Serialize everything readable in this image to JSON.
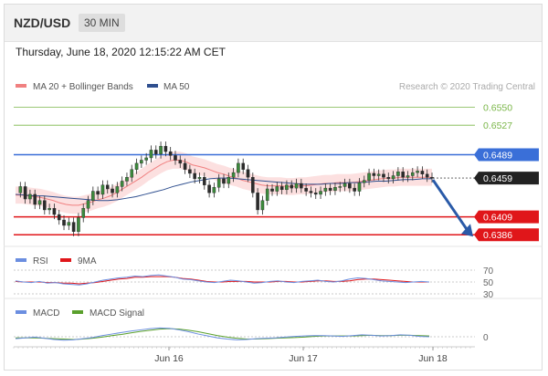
{
  "header": {
    "pair": "NZD/USD",
    "timeframe": "30 MIN"
  },
  "datetime": "Thursday, June 18, 2020 12:15:22 AM CET",
  "legend": {
    "bb": "MA 20 + Bollinger Bands",
    "ma50": "MA 50",
    "credit": "Research © 2020 Trading Central"
  },
  "rsi_legend": {
    "rsi": "RSI",
    "ma9": "9MA"
  },
  "macd_legend": {
    "macd": "MACD",
    "signal": "MACD Signal"
  },
  "colors": {
    "bb": "#f08080",
    "ma50": "#2f4f8f",
    "green": "#7ab648",
    "blue": "#3a6fd8",
    "red": "#e0161a",
    "black": "#222222",
    "arrow": "#2a5aa8",
    "macd": "#6b8ee0",
    "signal": "#5aa02c"
  },
  "chart_data": [
    {
      "type": "line",
      "title": "NZD/USD 30 MIN",
      "x_ticks": [
        "Jun 16",
        "Jun 17",
        "Jun 18"
      ],
      "ylim": [
        0.6378,
        0.6566
      ],
      "levels": [
        {
          "label": "0.6550",
          "value": 0.655,
          "color": "#7ab648",
          "style": "text"
        },
        {
          "label": "0.6527",
          "value": 0.6527,
          "color": "#7ab648",
          "style": "text"
        },
        {
          "label": "0.6489",
          "value": 0.6489,
          "color": "#3a6fd8",
          "style": "box"
        },
        {
          "label": "0.6459",
          "value": 0.6459,
          "color": "#222222",
          "style": "box",
          "dashed": true
        },
        {
          "label": "0.6409",
          "value": 0.6409,
          "color": "#e0161a",
          "style": "box"
        },
        {
          "label": "0.6386",
          "value": 0.6386,
          "color": "#e0161a",
          "style": "box"
        }
      ],
      "close": [
        0.644,
        0.6448,
        0.6432,
        0.6438,
        0.6425,
        0.643,
        0.6418,
        0.642,
        0.6412,
        0.6405,
        0.6398,
        0.6402,
        0.639,
        0.6408,
        0.642,
        0.643,
        0.6442,
        0.6438,
        0.645,
        0.6445,
        0.644,
        0.6448,
        0.6455,
        0.646,
        0.647,
        0.6478,
        0.6482,
        0.6485,
        0.6495,
        0.649,
        0.65,
        0.6493,
        0.6488,
        0.6482,
        0.6478,
        0.647,
        0.6465,
        0.6458,
        0.646,
        0.645,
        0.644,
        0.6447,
        0.6458,
        0.6452,
        0.646,
        0.6466,
        0.6478,
        0.647,
        0.646,
        0.644,
        0.6418,
        0.643,
        0.6445,
        0.6442,
        0.6448,
        0.6444,
        0.645,
        0.6446,
        0.6452,
        0.6446,
        0.6442,
        0.644,
        0.6438,
        0.6442,
        0.6446,
        0.6443,
        0.6447,
        0.6448,
        0.6452,
        0.6446,
        0.6442,
        0.6453,
        0.6456,
        0.6465,
        0.6462,
        0.6464,
        0.646,
        0.6458,
        0.6462,
        0.6467,
        0.646,
        0.6462,
        0.6466,
        0.6468,
        0.6464,
        0.646,
        0.6459
      ],
      "ma20": [
        0.6437,
        0.6437,
        0.6436,
        0.6435,
        0.6434,
        0.6432,
        0.643,
        0.6427,
        0.6425,
        0.6424,
        0.6424,
        0.6426,
        0.6428,
        0.6431,
        0.6433,
        0.6436,
        0.644,
        0.6445,
        0.645,
        0.6455,
        0.646,
        0.6466,
        0.6471,
        0.6476,
        0.648,
        0.6482,
        0.6482,
        0.648,
        0.6476,
        0.6474,
        0.6472,
        0.6469,
        0.6466,
        0.6464,
        0.6461,
        0.6459,
        0.6456,
        0.6454,
        0.6452,
        0.645,
        0.6449,
        0.6449,
        0.6449,
        0.6448,
        0.6448,
        0.6449,
        0.6449,
        0.645,
        0.6451,
        0.6452,
        0.6452,
        0.6453,
        0.6453,
        0.6453,
        0.6454,
        0.6455,
        0.6456,
        0.6457,
        0.6458,
        0.6459,
        0.6459,
        0.646,
        0.646,
        0.646,
        0.646,
        0.646,
        0.646
      ],
      "ma50": [
        0.6438,
        0.6437,
        0.6436,
        0.6436,
        0.6435,
        0.6434,
        0.6433,
        0.6432,
        0.6431,
        0.643,
        0.643,
        0.6431,
        0.6433,
        0.6435,
        0.6438,
        0.6441,
        0.6444,
        0.6448,
        0.6451,
        0.6454,
        0.6456,
        0.6458,
        0.6459,
        0.6459,
        0.6458,
        0.6457,
        0.6456,
        0.6455,
        0.6454,
        0.6453,
        0.6452,
        0.6451,
        0.6451,
        0.6451,
        0.6452,
        0.6452,
        0.6453,
        0.6453,
        0.6454,
        0.6455,
        0.6455,
        0.6456,
        0.6457,
        0.6457,
        0.6458,
        0.6458
      ],
      "arrow": {
        "from": 0.6459,
        "to": 0.6386
      }
    },
    {
      "type": "line",
      "title": "RSI",
      "ylim": [
        30,
        70
      ],
      "ticks": [
        "70",
        "50",
        "30"
      ],
      "rsi": [
        52,
        50,
        49,
        51,
        48,
        49,
        47,
        46,
        45,
        47,
        50,
        53,
        55,
        57,
        58,
        60,
        59,
        61,
        62,
        60,
        58,
        55,
        54,
        52,
        50,
        49,
        51,
        53,
        52,
        50,
        48,
        49,
        51,
        52,
        50,
        49,
        51,
        52,
        53,
        51,
        50,
        52,
        55,
        57,
        56,
        54,
        52,
        51,
        50,
        49,
        50,
        51,
        50
      ],
      "ma9": [
        51,
        50,
        50,
        50,
        49,
        49,
        48,
        48,
        47,
        48,
        49,
        51,
        53,
        55,
        56,
        58,
        58,
        59,
        59,
        59,
        58,
        56,
        55,
        53,
        51,
        50,
        50,
        51,
        51,
        51,
        50,
        50,
        50,
        51,
        51,
        50,
        50,
        51,
        52,
        52,
        51,
        51,
        52,
        54,
        55,
        55,
        54,
        53,
        52,
        51,
        50,
        50,
        50
      ]
    },
    {
      "type": "line",
      "title": "MACD",
      "ticks": [
        "0"
      ],
      "macd": [
        -0.5,
        -0.3,
        -0.1,
        -0.4,
        -0.7,
        -0.9,
        -0.8,
        -0.5,
        -0.2,
        0.3,
        0.7,
        1.1,
        1.5,
        1.8,
        2.1,
        2.3,
        2.2,
        1.8,
        1.3,
        0.7,
        0.2,
        -0.3,
        -0.6,
        -0.8,
        -0.7,
        -0.5,
        -0.4,
        -0.3,
        -0.1,
        0.1,
        0.2,
        0.3,
        0.3,
        0.2,
        0.1,
        0.3,
        0.5,
        0.4,
        0.2,
        0.3,
        0.5,
        0.4,
        0.1,
        0.0
      ],
      "signal": [
        -0.3,
        -0.3,
        -0.3,
        -0.4,
        -0.5,
        -0.6,
        -0.7,
        -0.6,
        -0.4,
        -0.1,
        0.3,
        0.6,
        1.0,
        1.4,
        1.7,
        2.0,
        2.1,
        2.0,
        1.7,
        1.3,
        0.8,
        0.3,
        -0.1,
        -0.4,
        -0.6,
        -0.6,
        -0.5,
        -0.4,
        -0.3,
        -0.2,
        -0.1,
        0.1,
        0.2,
        0.2,
        0.2,
        0.2,
        0.3,
        0.4,
        0.3,
        0.3,
        0.4,
        0.4,
        0.3,
        0.2
      ]
    }
  ]
}
